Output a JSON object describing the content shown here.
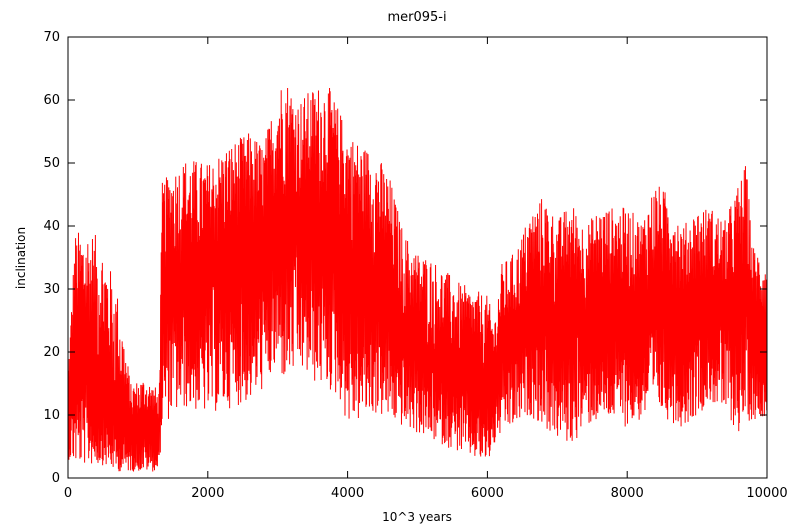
{
  "chart_data": {
    "type": "line",
    "title": "mer095-i",
    "xlabel": "10^3 years",
    "ylabel": "inclination",
    "xlim": [
      0,
      10000
    ],
    "ylim": [
      0,
      70
    ],
    "xticks": [
      0,
      2000,
      4000,
      6000,
      8000,
      10000
    ],
    "yticks": [
      0,
      10,
      20,
      30,
      40,
      50,
      60,
      70
    ],
    "grid": false,
    "legend": "none",
    "series_color": "#ff0000",
    "series": [
      {
        "envelope": {
          "x": [
            0,
            100,
            300,
            500,
            700,
            900,
            1100,
            1300,
            1350,
            1500,
            1700,
            2000,
            2300,
            2600,
            2800,
            3000,
            3100,
            3300,
            3500,
            3700,
            3900,
            4000,
            4200,
            4400,
            4600,
            4800,
            5000,
            5200,
            5400,
            5600,
            5800,
            6000,
            6100,
            6200,
            6400,
            6600,
            6800,
            7000,
            7200,
            7400,
            7600,
            7800,
            8000,
            8200,
            8400,
            8600,
            8800,
            9000,
            9200,
            9400,
            9600,
            9700,
            9800,
            10000
          ],
          "upper": [
            17,
            39,
            40,
            37,
            30,
            15,
            16,
            14,
            47,
            49,
            51,
            50,
            53,
            55,
            53,
            62,
            64,
            60,
            62,
            63,
            58,
            55,
            53,
            52,
            48,
            39,
            36,
            35,
            33,
            31,
            30,
            29,
            25,
            34,
            36,
            42,
            45,
            41,
            44,
            40,
            43,
            43,
            43,
            41,
            47,
            45,
            40,
            43,
            43,
            41,
            47,
            50,
            37,
            35
          ],
          "lower": [
            3,
            2,
            2,
            2,
            1,
            1,
            1,
            1,
            8,
            10,
            11,
            10,
            11,
            12,
            14,
            17,
            15,
            17,
            15,
            14,
            12,
            8,
            9,
            10,
            9,
            8,
            7,
            6,
            5,
            4,
            3,
            2,
            5,
            7,
            8,
            10,
            8,
            6,
            5,
            8,
            9,
            9,
            8,
            9,
            11,
            9,
            8,
            10,
            12,
            10,
            7,
            9,
            9,
            10
          ],
          "mid": [
            10,
            18,
            15,
            12,
            8,
            7,
            8,
            6,
            30,
            32,
            30,
            32,
            35,
            35,
            35,
            40,
            42,
            40,
            40,
            40,
            38,
            36,
            33,
            30,
            28,
            22,
            20,
            18,
            17,
            16,
            15,
            14,
            15,
            20,
            22,
            25,
            26,
            25,
            26,
            25,
            26,
            27,
            27,
            26,
            28,
            28,
            25,
            27,
            27,
            26,
            28,
            30,
            23,
            22
          ]
        }
      }
    ]
  }
}
